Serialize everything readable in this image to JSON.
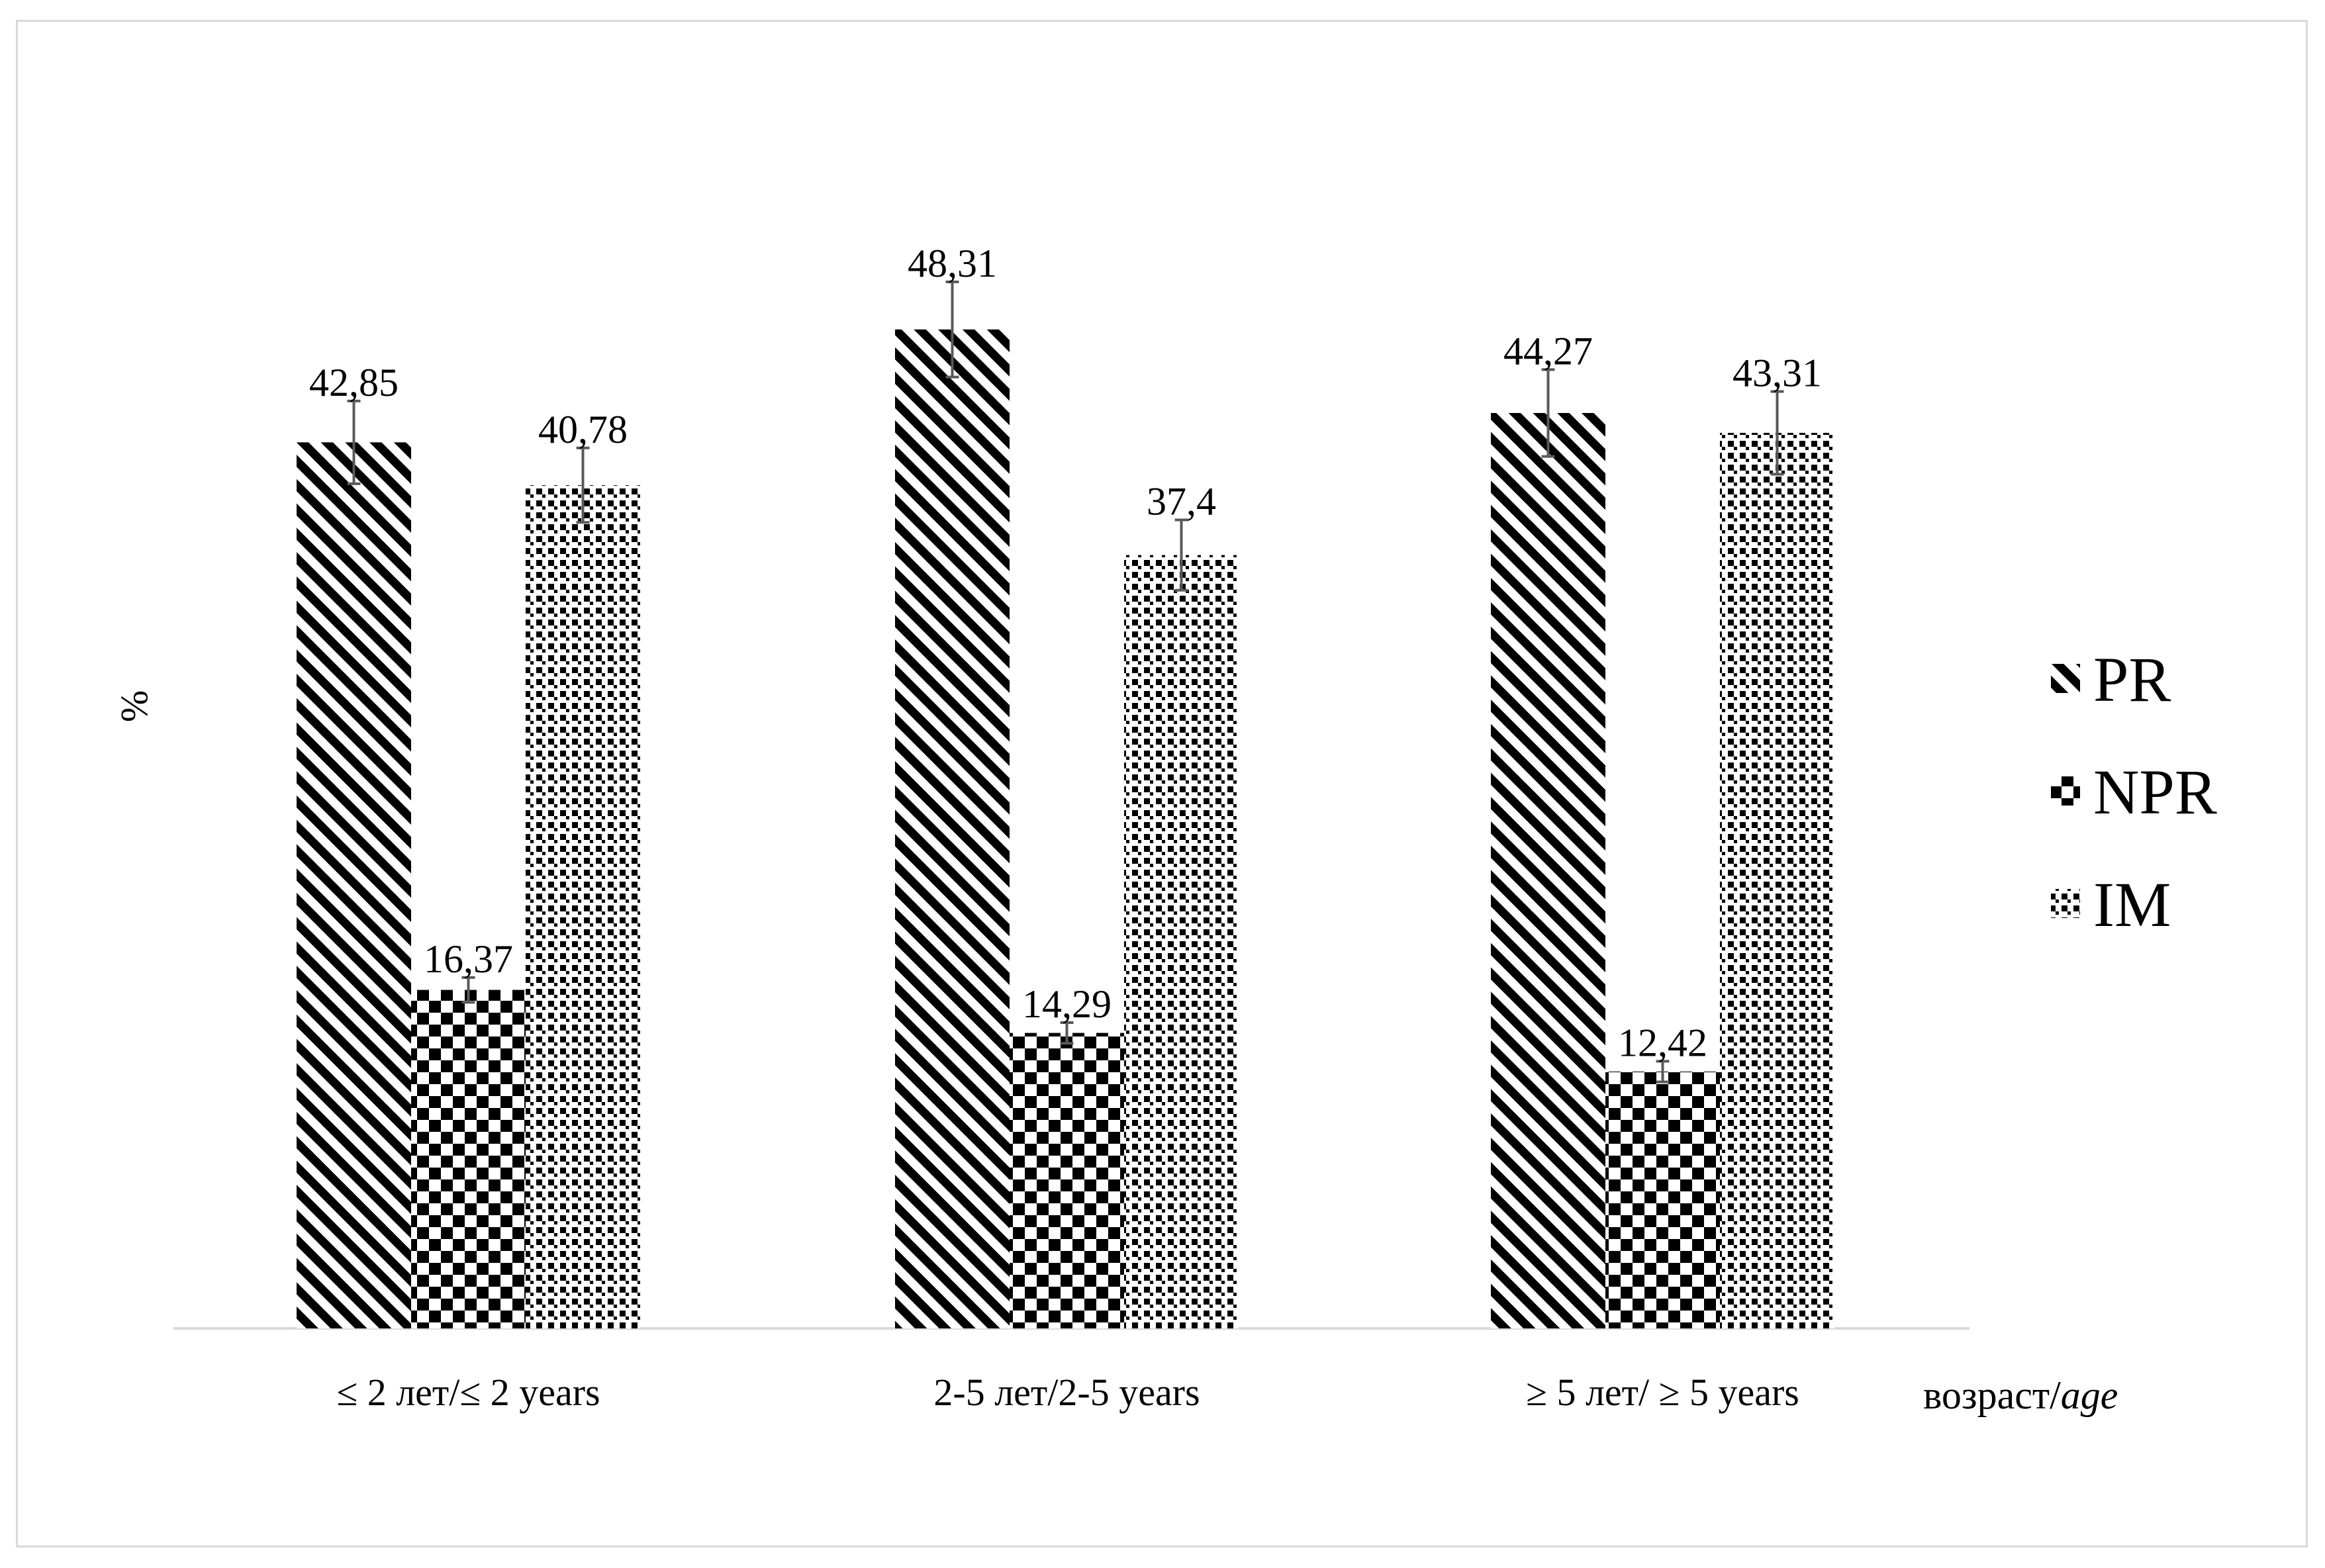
{
  "chart_data": {
    "type": "bar",
    "title": "",
    "ylabel": "%",
    "xlabel": "возраст/",
    "xlabel_italic": "age",
    "ylim": [
      0,
      54
    ],
    "grid": false,
    "legend_position": "right",
    "categories": [
      "≤ 2 лет/≤ 2 years",
      "2-5 лет/2-5 years",
      "≥ 5 лет/ ≥ 5 years"
    ],
    "series": [
      {
        "name": "PR",
        "pattern": "diagonal-stripes",
        "values": [
          42.85,
          48.31,
          44.27
        ],
        "labels": [
          "42,85",
          "48,31",
          "44,27"
        ],
        "errors": [
          2.0,
          2.3,
          2.1
        ]
      },
      {
        "name": "NPR",
        "pattern": "checkerboard",
        "values": [
          16.37,
          14.29,
          12.42
        ],
        "labels": [
          "16,37",
          "14,29",
          "12,42"
        ],
        "errors": [
          0.6,
          0.5,
          0.5
        ]
      },
      {
        "name": "IM",
        "pattern": "dots",
        "values": [
          40.78,
          37.4,
          43.31
        ],
        "labels": [
          "40,78",
          "37,4",
          "43,31"
        ],
        "errors": [
          1.8,
          1.7,
          2.0
        ]
      }
    ],
    "colors": {
      "bar_ink": "#000000",
      "axis": "#d9d9d9",
      "error_bar": "#595959",
      "accent": "#4f81bd"
    }
  }
}
